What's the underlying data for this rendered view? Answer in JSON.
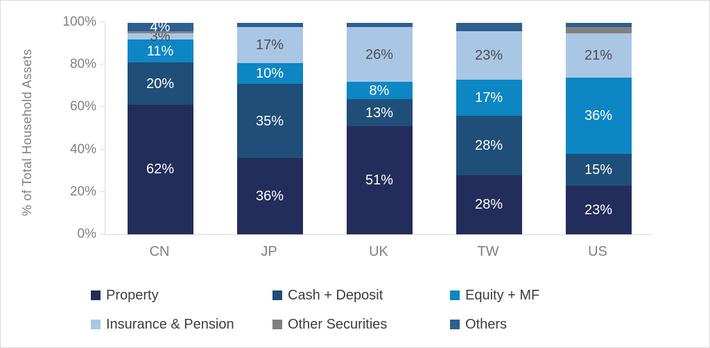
{
  "figure": {
    "background": "#FFFFFF",
    "border_color": "#D9D9D9",
    "axis_line_color": "#D9D9D9",
    "tick_label_color": "#7F7F7F",
    "x_label_color": "#7F7F7F",
    "y_title_color": "#7F7F7F",
    "dark_label_color": "#4F4F4F",
    "legend_text_color": "#3D3D3D"
  },
  "chart_data": {
    "type": "bar",
    "variant": "stacked-100-percent",
    "title": "",
    "xlabel": "",
    "ylabel": "% of Total Household Assets",
    "categories": [
      "CN",
      "JP",
      "UK",
      "TW",
      "US"
    ],
    "ylim": [
      0,
      100
    ],
    "grid": false,
    "legend_position": "bottom",
    "y_ticks": [
      {
        "value": 0,
        "label": "0%"
      },
      {
        "value": 20,
        "label": "20%"
      },
      {
        "value": 40,
        "label": "40%"
      },
      {
        "value": 60,
        "label": "60%"
      },
      {
        "value": 80,
        "label": "80%"
      },
      {
        "value": 100,
        "label": "100%"
      }
    ],
    "series": [
      {
        "name": "Property",
        "color": "#232D5B",
        "label_color": "#FFFFFF",
        "values": [
          62,
          36,
          51,
          28,
          23
        ],
        "labels": [
          "62%",
          "36%",
          "51%",
          "28%",
          "23%"
        ]
      },
      {
        "name": "Cash + Deposit",
        "color": "#1F4E79",
        "label_color": "#FFFFFF",
        "values": [
          20,
          35,
          13,
          28,
          15
        ],
        "labels": [
          "20%",
          "35%",
          "13%",
          "28%",
          "15%"
        ]
      },
      {
        "name": "Equity + MF",
        "color": "#0D86C4",
        "label_color": "#FFFFFF",
        "values": [
          11,
          10,
          8,
          17,
          36
        ],
        "labels": [
          "11%",
          "10%",
          "8%",
          "17%",
          "36%"
        ]
      },
      {
        "name": "Insurance & Pension",
        "color": "#A9C6E4",
        "label_color": "#4F4F4F",
        "values": [
          3,
          17,
          26,
          23,
          21
        ],
        "labels": [
          "3%",
          "17%",
          "26%",
          "23%",
          "21%"
        ]
      },
      {
        "name": "Other Securities",
        "color": "#808080",
        "label_color": "#FFFFFF",
        "values": [
          1,
          0,
          0,
          0,
          3
        ],
        "labels": [
          "",
          "",
          "",
          "",
          ""
        ]
      },
      {
        "name": "Others",
        "color": "#2D5F8F",
        "label_color": "#FFFFFF",
        "values": [
          4,
          2,
          2,
          4,
          2
        ],
        "labels": [
          "4%",
          "",
          "",
          "",
          ""
        ]
      }
    ]
  }
}
